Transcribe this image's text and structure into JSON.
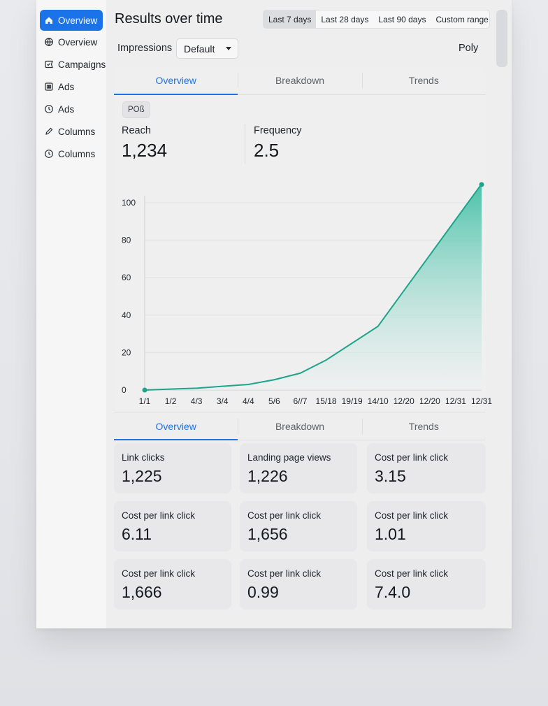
{
  "sidebar": {
    "items": [
      {
        "label": "Overview",
        "icon": "home-icon",
        "active": true
      },
      {
        "label": "Overview",
        "icon": "globe-icon",
        "active": false
      },
      {
        "label": "Campaigns",
        "icon": "tag-icon",
        "active": false
      },
      {
        "label": "Ads",
        "icon": "grid-icon",
        "active": false
      },
      {
        "label": "Ads",
        "icon": "clock-icon",
        "active": false
      },
      {
        "label": "Columns",
        "icon": "pencil-icon",
        "active": false
      },
      {
        "label": "Columns",
        "icon": "clock-icon",
        "active": false
      }
    ]
  },
  "header": {
    "title": "Results over time",
    "ranges": [
      "Last 7 days",
      "Last 28 days",
      "Last 90 days",
      "Custom range"
    ],
    "selected_range": "Last 7 days"
  },
  "toolbar": {
    "metric_label": "Impressions",
    "select_value": "Default",
    "right_label": "Poly"
  },
  "tabs_top": [
    "Overview",
    "Breakdown",
    "Trends"
  ],
  "tabs_bottom": [
    "Overview",
    "Breakdown",
    "Trends"
  ],
  "chip": "POß",
  "kpis": [
    {
      "label": "Reach",
      "value": "1,234"
    },
    {
      "label": "Frequency",
      "value": "2.5"
    }
  ],
  "chart_data": {
    "type": "area",
    "categories": [
      "1/1",
      "1/2",
      "4/3",
      "3/4",
      "4/4",
      "5/6",
      "6//7",
      "15/18",
      "19/19",
      "14/10",
      "12/20",
      "12/20",
      "12/31",
      "12/31"
    ],
    "values": [
      0,
      0.5,
      1,
      2,
      3,
      5.5,
      9,
      16,
      25,
      34,
      53,
      72,
      91,
      110
    ],
    "ylim": [
      0,
      100
    ],
    "yticks": [
      0,
      20,
      40,
      60,
      80,
      100
    ],
    "grid": true,
    "colors": {
      "line": "#1fa38a",
      "fill_top": "#43c0a6",
      "fill_bottom": "#eef2f1"
    }
  },
  "stats": [
    {
      "label": "Link clicks",
      "value": "1,225"
    },
    {
      "label": "Landing page views",
      "value": "1,226"
    },
    {
      "label": "Cost per link click",
      "value": "3.15"
    },
    {
      "label": "Cost per link click",
      "value": "6.11"
    },
    {
      "label": "Cost per link click",
      "value": "1,656"
    },
    {
      "label": "Cost per link click",
      "value": "1.01"
    },
    {
      "label": "Cost per link click",
      "value": "1,666"
    },
    {
      "label": "Cost per link click",
      "value": "0.99"
    },
    {
      "label": "Cost per link click",
      "value": "7.4.0"
    }
  ],
  "colors": {
    "accent": "#1a73e8"
  }
}
